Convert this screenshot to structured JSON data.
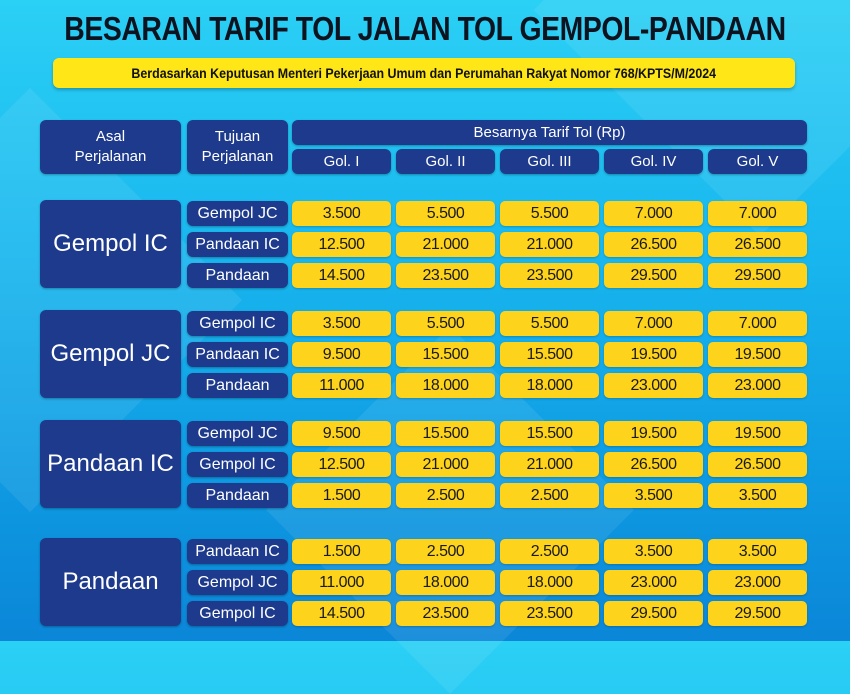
{
  "title": "BESARAN TARIF TOL JALAN TOL GEMPOL-PANDAAN",
  "subtitle": "Berdasarkan Keputusan Menteri Pekerjaan Umum dan Perumahan Rakyat Nomor 768/KPTS/M/2024",
  "header": {
    "origin": "Asal Perjalanan",
    "destination": "Tujuan Perjalanan",
    "tariff": "Besarnya Tarif Tol (Rp)",
    "classes": [
      "Gol. I",
      "Gol. II",
      "Gol. III",
      "Gol. IV",
      "Gol. V"
    ]
  },
  "groups": [
    {
      "origin": "Gempol IC",
      "rows": [
        {
          "destination": "Gempol JC",
          "tariffs": [
            "3.500",
            "5.500",
            "5.500",
            "7.000",
            "7.000"
          ]
        },
        {
          "destination": "Pandaan IC",
          "tariffs": [
            "12.500",
            "21.000",
            "21.000",
            "26.500",
            "26.500"
          ]
        },
        {
          "destination": "Pandaan",
          "tariffs": [
            "14.500",
            "23.500",
            "23.500",
            "29.500",
            "29.500"
          ]
        }
      ]
    },
    {
      "origin": "Gempol JC",
      "rows": [
        {
          "destination": "Gempol IC",
          "tariffs": [
            "3.500",
            "5.500",
            "5.500",
            "7.000",
            "7.000"
          ]
        },
        {
          "destination": "Pandaan IC",
          "tariffs": [
            "9.500",
            "15.500",
            "15.500",
            "19.500",
            "19.500"
          ]
        },
        {
          "destination": "Pandaan",
          "tariffs": [
            "11.000",
            "18.000",
            "18.000",
            "23.000",
            "23.000"
          ]
        }
      ]
    },
    {
      "origin": "Pandaan IC",
      "rows": [
        {
          "destination": "Gempol JC",
          "tariffs": [
            "9.500",
            "15.500",
            "15.500",
            "19.500",
            "19.500"
          ]
        },
        {
          "destination": "Gempol IC",
          "tariffs": [
            "12.500",
            "21.000",
            "21.000",
            "26.500",
            "26.500"
          ]
        },
        {
          "destination": "Pandaan",
          "tariffs": [
            "1.500",
            "2.500",
            "2.500",
            "3.500",
            "3.500"
          ]
        }
      ]
    },
    {
      "origin": "Pandaan",
      "rows": [
        {
          "destination": "Pandaan IC",
          "tariffs": [
            "1.500",
            "2.500",
            "2.500",
            "3.500",
            "3.500"
          ]
        },
        {
          "destination": "Gempol JC",
          "tariffs": [
            "11.000",
            "18.000",
            "18.000",
            "23.000",
            "23.000"
          ]
        },
        {
          "destination": "Gempol IC",
          "tariffs": [
            "14.500",
            "23.500",
            "23.500",
            "29.500",
            "29.500"
          ]
        }
      ]
    }
  ],
  "colors": {
    "navy": "#1d3a8c",
    "yellow": "#fdd31c",
    "banner": "#ffe617"
  }
}
